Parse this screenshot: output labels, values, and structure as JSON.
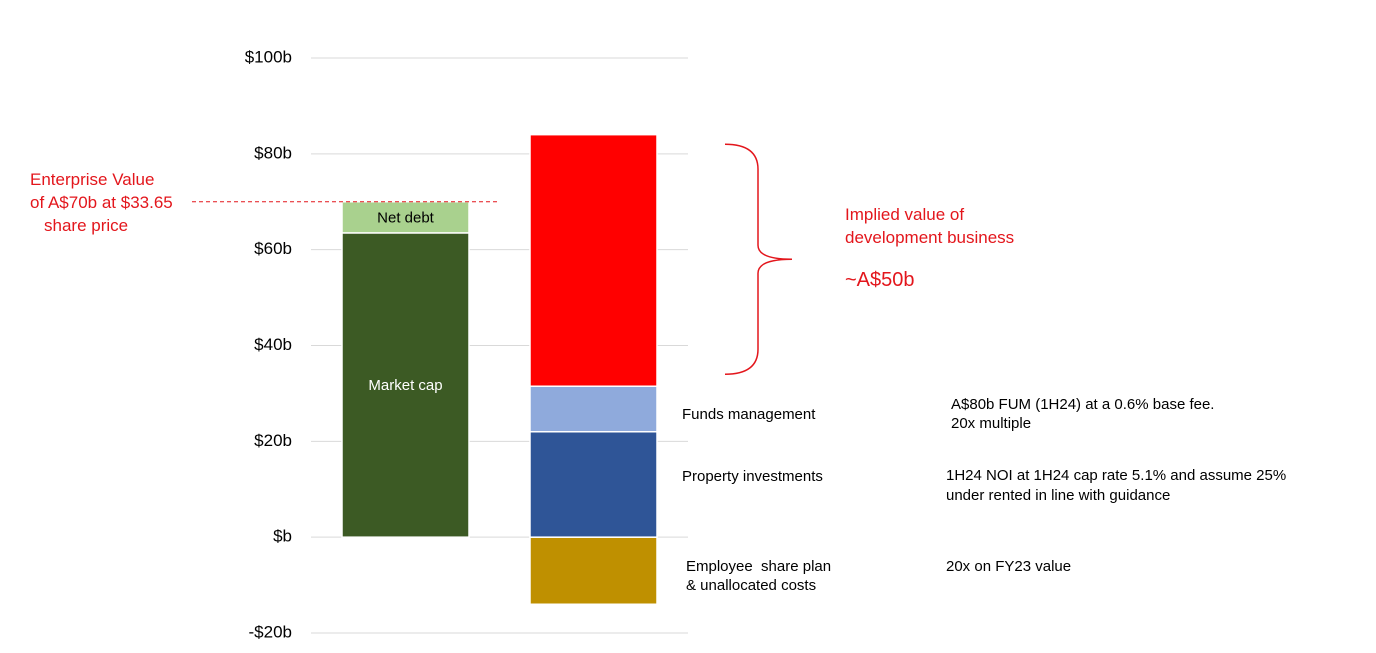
{
  "chart_data": {
    "type": "bar",
    "stacked": true,
    "ylim": [
      -20,
      100
    ],
    "yticks": [
      100,
      80,
      60,
      40,
      20,
      0,
      -20
    ],
    "ytick_labels": [
      "$100b",
      "$80b",
      "$60b",
      "$40b",
      "$20b",
      "$b",
      "-$20b"
    ],
    "grid": true,
    "columns": [
      {
        "segments": [
          {
            "label": "Market cap",
            "base": 0,
            "value": 63.5,
            "color": "#3c5a24",
            "label_color": "#ffffff"
          },
          {
            "label": "Net debt",
            "base": 63.5,
            "value": 6.5,
            "color": "#a9d18e",
            "label_color": "#000000"
          }
        ]
      },
      {
        "segments": [
          {
            "label": "Employee  share plan",
            "label2": "& unallocated costs",
            "base": -14,
            "value": 14,
            "color": "#bf9000"
          },
          {
            "label": "Property investments",
            "base": 0,
            "value": 22,
            "color": "#2f5597"
          },
          {
            "label": "Funds management",
            "base": 22,
            "value": 9.5,
            "color": "#8faadc"
          },
          {
            "label": "",
            "base": 31.5,
            "value": 52.5,
            "color": "#ff0000"
          }
        ]
      }
    ],
    "annotations": {
      "ev_line": [
        "Enterprise Value",
        "of A$70b at $33.65",
        "share price"
      ],
      "ev_value": 70,
      "implied": [
        "Implied value of",
        "development business"
      ],
      "implied_value": "~A$50b",
      "brace_range": [
        34,
        82
      ],
      "notes": {
        "funds": [
          "A$80b FUM (1H24) at a 0.6% base fee.",
          "20x multiple"
        ],
        "property": [
          "1H24 NOI at 1H24 cap rate 5.1% and assume 25%",
          "under rented in line with guidance"
        ],
        "employee": [
          "20x on FY23 value"
        ]
      }
    }
  }
}
